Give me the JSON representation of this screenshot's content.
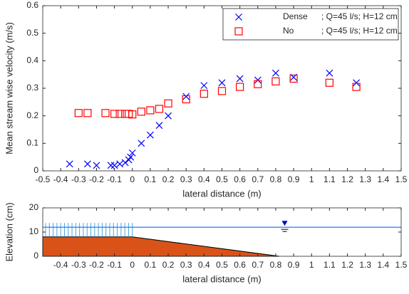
{
  "chart_data": [
    {
      "type": "scatter",
      "xlabel": "lateral distance (m)",
      "ylabel": "Mean stream wise velocity (m/s)",
      "xlim": [
        -0.5,
        1.5
      ],
      "xticks": [
        -0.5,
        -0.4,
        -0.3,
        -0.2,
        -0.1,
        0,
        0.1,
        0.2,
        0.3,
        0.4,
        0.5,
        0.6,
        0.7,
        0.8,
        0.9,
        1,
        1.1,
        1.2,
        1.3,
        1.4,
        1.5
      ],
      "ylim": [
        0,
        0.6
      ],
      "yticks": [
        0,
        0.1,
        0.2,
        0.3,
        0.4,
        0.5,
        0.6
      ],
      "legend": "upper right",
      "series": [
        {
          "name": "Dense",
          "note": "; Q=45 l/s; H=12 cm",
          "marker": "x",
          "color": "#0000ff",
          "x": [
            -0.35,
            -0.25,
            -0.2,
            -0.12,
            -0.1,
            -0.07,
            -0.04,
            -0.02,
            -0.01,
            0,
            0.05,
            0.1,
            0.15,
            0.2,
            0.3,
            0.4,
            0.5,
            0.6,
            0.7,
            0.8,
            0.9,
            1.1,
            1.25
          ],
          "values": [
            0.025,
            0.025,
            0.02,
            0.02,
            0.02,
            0.025,
            0.03,
            0.04,
            0.05,
            0.065,
            0.1,
            0.13,
            0.165,
            0.2,
            0.27,
            0.31,
            0.32,
            0.335,
            0.33,
            0.355,
            0.34,
            0.355,
            0.32
          ]
        },
        {
          "name": "No",
          "note": "; Q=45 l/s; H=12 cm",
          "marker": "square",
          "color": "#ff0000",
          "x": [
            -0.3,
            -0.25,
            -0.15,
            -0.1,
            -0.07,
            -0.04,
            -0.02,
            0,
            0.05,
            0.1,
            0.15,
            0.2,
            0.3,
            0.4,
            0.5,
            0.6,
            0.7,
            0.8,
            0.9,
            1.1,
            1.25
          ],
          "values": [
            0.21,
            0.21,
            0.21,
            0.207,
            0.207,
            0.207,
            0.207,
            0.205,
            0.215,
            0.22,
            0.225,
            0.245,
            0.26,
            0.28,
            0.29,
            0.305,
            0.315,
            0.325,
            0.335,
            0.32,
            0.305
          ]
        }
      ]
    },
    {
      "type": "area",
      "xlabel": "lateral distance (m)",
      "ylabel": "Elevation (cm)",
      "xlim": [
        -0.5,
        1.5
      ],
      "xticks": [
        -0.4,
        -0.3,
        -0.2,
        -0.1,
        0,
        0.1,
        0.2,
        0.3,
        0.4,
        0.5,
        0.6,
        0.7,
        0.8,
        0.9,
        1,
        1.1,
        1.2,
        1.3,
        1.4,
        1.5
      ],
      "ylim": [
        0,
        20
      ],
      "yticks": [
        0,
        10,
        20
      ],
      "x": [
        -0.5,
        0,
        0.82
      ],
      "values": [
        8,
        8,
        0
      ],
      "color": "#d95319",
      "water_level": 12,
      "water_color": "#0a6cff",
      "stem_color": "#4ea6dc"
    }
  ]
}
